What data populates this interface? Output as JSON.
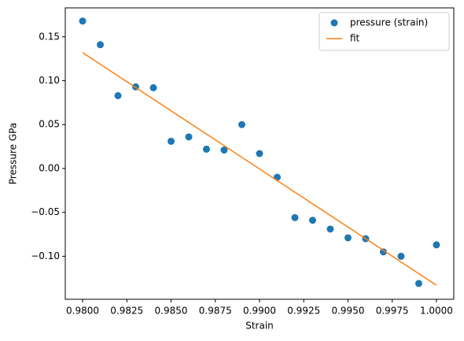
{
  "chart_data": {
    "type": "scatter",
    "xlabel": "Strain",
    "ylabel": "Pressure GPa",
    "x": [
      0.98,
      0.981,
      0.982,
      0.983,
      0.984,
      0.985,
      0.986,
      0.987,
      0.988,
      0.989,
      0.99,
      0.991,
      0.992,
      0.993,
      0.994,
      0.995,
      0.996,
      0.997,
      0.998,
      0.999,
      1.0
    ],
    "series": [
      {
        "name": "pressure (strain)",
        "type": "scatter",
        "color": "#1f77b4",
        "values": [
          0.168,
          0.141,
          0.083,
          0.093,
          0.092,
          0.031,
          0.036,
          0.022,
          0.021,
          0.05,
          0.017,
          -0.01,
          -0.056,
          -0.059,
          -0.069,
          -0.079,
          -0.08,
          -0.095,
          -0.1,
          -0.131,
          -0.087
        ]
      },
      {
        "name": "fit",
        "type": "line",
        "color": "#ff7f0e",
        "x": [
          0.98,
          1.0
        ],
        "values": [
          0.132,
          -0.133
        ]
      }
    ],
    "xlim": [
      0.97902,
      1.00098
    ],
    "ylim": [
      -0.149,
      0.183
    ],
    "xticks": [
      {
        "value": 0.98,
        "label": "0.9800"
      },
      {
        "value": 0.9825,
        "label": "0.9825"
      },
      {
        "value": 0.985,
        "label": "0.9850"
      },
      {
        "value": 0.9875,
        "label": "0.9875"
      },
      {
        "value": 0.99,
        "label": "0.9900"
      },
      {
        "value": 0.9925,
        "label": "0.9925"
      },
      {
        "value": 0.995,
        "label": "0.9950"
      },
      {
        "value": 0.9975,
        "label": "0.9975"
      },
      {
        "value": 1.0,
        "label": "1.0000"
      }
    ],
    "yticks": [
      {
        "value": -0.1,
        "label": "−0.10"
      },
      {
        "value": -0.05,
        "label": "−0.05"
      },
      {
        "value": 0,
        "label": "0.00"
      },
      {
        "value": 0.05,
        "label": "0.05"
      },
      {
        "value": 0.1,
        "label": "0.10"
      },
      {
        "value": 0.15,
        "label": "0.15"
      }
    ],
    "legend": "upper right"
  }
}
